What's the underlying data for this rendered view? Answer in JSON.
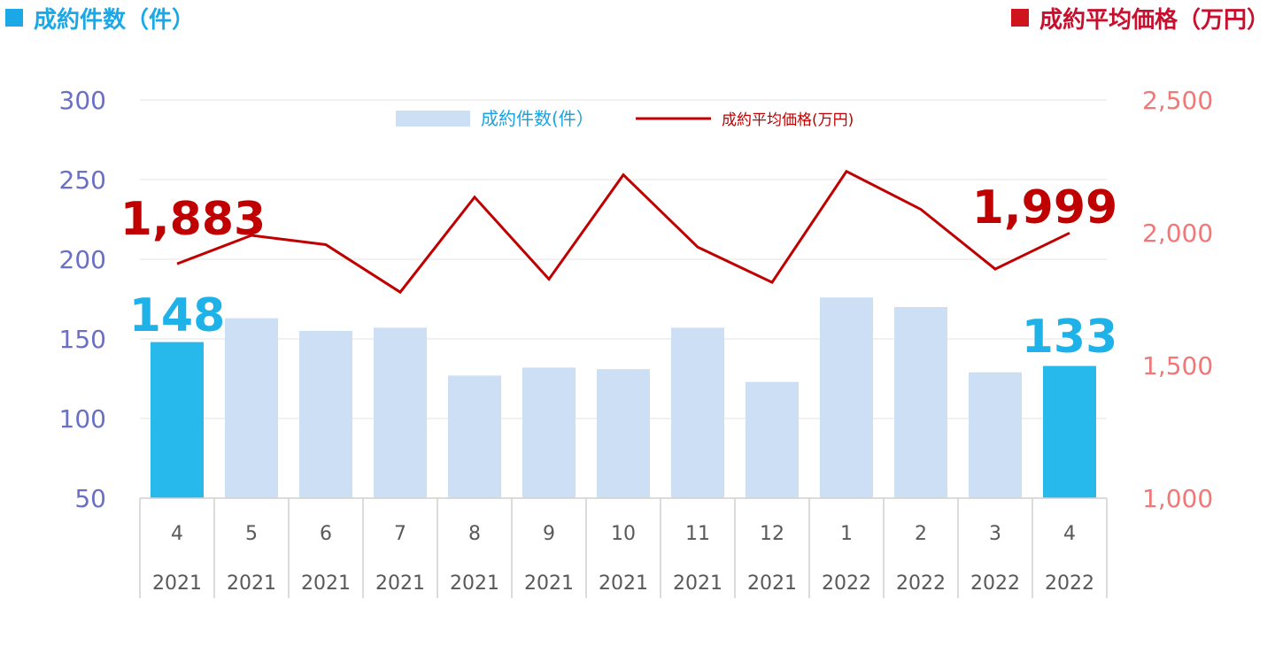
{
  "header": {
    "left_title": "成約件数（件）",
    "right_title": "成約平均価格（万円）"
  },
  "chart_data": {
    "type": "bar",
    "categories": [
      "4",
      "5",
      "6",
      "7",
      "8",
      "9",
      "10",
      "11",
      "12",
      "1",
      "2",
      "3",
      "4"
    ],
    "years": [
      "2021",
      "2021",
      "2021",
      "2021",
      "2021",
      "2021",
      "2021",
      "2021",
      "2021",
      "2022",
      "2022",
      "2022",
      "2022"
    ],
    "series": [
      {
        "name": "成約件数(件）",
        "type": "bar",
        "axis": "left",
        "values": [
          148,
          163,
          155,
          157,
          127,
          132,
          131,
          157,
          123,
          176,
          170,
          129,
          133
        ]
      },
      {
        "name": "成約平均価格(万円)",
        "type": "line",
        "axis": "right",
        "values": [
          1883,
          1990,
          1955,
          1776,
          2134,
          1825,
          2218,
          1946,
          1813,
          2231,
          2088,
          1863,
          1999
        ]
      }
    ],
    "highlight_indices": [
      0,
      12
    ],
    "annotations": {
      "bar_first": "148",
      "bar_last": "133",
      "line_first": "1,883",
      "line_last": "1,999"
    },
    "ylim_left": [
      50,
      300
    ],
    "yticks_left": [
      "50",
      "100",
      "150",
      "200",
      "250",
      "300"
    ],
    "ylim_right": [
      1000,
      2500
    ],
    "yticks_right": [
      "1,000",
      "1,500",
      "2,000",
      "2,500"
    ],
    "grid": true,
    "legend_position": "top-center",
    "colors": {
      "bar_highlight": "#27b9ec",
      "bar_normal": "#cddff4",
      "line": "#c00000",
      "left_axis_text": "#6a6fc8",
      "right_axis_text": "#f27777",
      "bar_label": "#1fb2e8",
      "line_label": "#c00000",
      "legend_bar_text": "#1ba3e0",
      "legend_line_text": "#c00000"
    }
  }
}
